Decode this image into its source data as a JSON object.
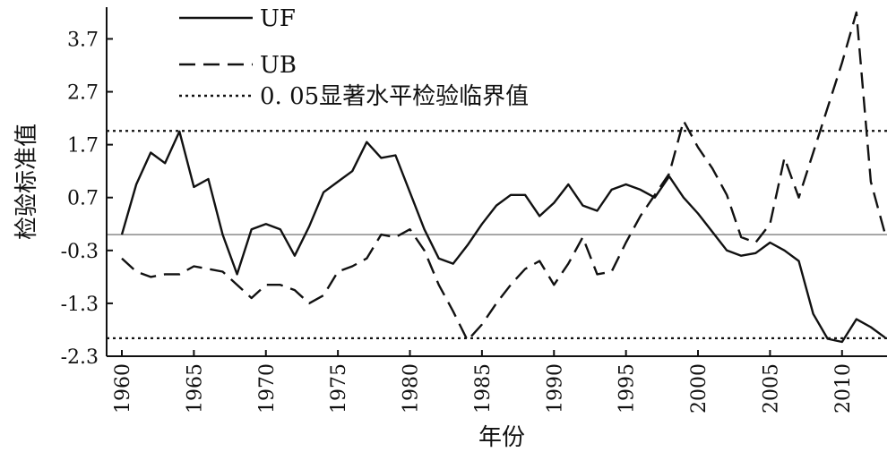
{
  "chart_data": {
    "type": "line",
    "xlabel": "年份",
    "ylabel": "检验标准值",
    "xlim": [
      1960,
      2013
    ],
    "ylim": [
      -2.3,
      4.3
    ],
    "xticks": [
      1960,
      1965,
      1970,
      1975,
      1980,
      1985,
      1990,
      1995,
      2000,
      2005,
      2010
    ],
    "yticks": [
      -2.3,
      -1.3,
      -0.3,
      0.7,
      1.7,
      2.7,
      3.7
    ],
    "ytick_labels": [
      "-2.3",
      "-1.3",
      "-0.3",
      "0.7",
      "1.7",
      "2.7",
      "3.7"
    ],
    "zero_line": 0,
    "critical_lines": [
      1.96,
      -1.96
    ],
    "legend_position": "top-left",
    "series": [
      {
        "name": "UF",
        "style": "solid",
        "x": [
          1960,
          1961,
          1962,
          1963,
          1964,
          1965,
          1966,
          1967,
          1968,
          1969,
          1970,
          1971,
          1972,
          1973,
          1974,
          1975,
          1976,
          1977,
          1978,
          1979,
          1980,
          1981,
          1982,
          1983,
          1984,
          1985,
          1986,
          1987,
          1988,
          1989,
          1990,
          1991,
          1992,
          1993,
          1994,
          1995,
          1996,
          1997,
          1998,
          1999,
          2000,
          2001,
          2002,
          2003,
          2004,
          2005,
          2006,
          2007,
          2008,
          2009,
          2010,
          2011,
          2012,
          2013
        ],
        "y": [
          0,
          0.95,
          1.55,
          1.35,
          1.95,
          0.9,
          1.05,
          0,
          -0.75,
          0.1,
          0.2,
          0.1,
          -0.4,
          0.15,
          0.8,
          1.0,
          1.2,
          1.75,
          1.45,
          1.5,
          0.8,
          0.1,
          -0.45,
          -0.55,
          -0.2,
          0.2,
          0.55,
          0.75,
          0.75,
          0.35,
          0.6,
          0.95,
          0.55,
          0.45,
          0.85,
          0.95,
          0.85,
          0.7,
          1.1,
          0.7,
          0.4,
          0.05,
          -0.3,
          -0.4,
          -0.35,
          -0.15,
          -0.3,
          -0.5,
          -1.5,
          -1.97,
          -2.03,
          -1.6,
          -1.75,
          -1.95
        ]
      },
      {
        "name": "UB",
        "style": "dashed",
        "x": [
          1960,
          1961,
          1962,
          1963,
          1964,
          1965,
          1966,
          1967,
          1968,
          1969,
          1970,
          1971,
          1972,
          1973,
          1974,
          1975,
          1976,
          1977,
          1978,
          1979,
          1980,
          1981,
          1982,
          1983,
          1984,
          1985,
          1986,
          1987,
          1988,
          1989,
          1990,
          1991,
          1992,
          1993,
          1994,
          1995,
          1996,
          1997,
          1998,
          1999,
          2000,
          2001,
          2002,
          2003,
          2004,
          2005,
          2006,
          2007,
          2008,
          2009,
          2010,
          2011,
          2012,
          2013
        ],
        "y": [
          -0.45,
          -0.7,
          -0.8,
          -0.75,
          -0.75,
          -0.6,
          -0.65,
          -0.7,
          -0.95,
          -1.2,
          -0.95,
          -0.95,
          -1.05,
          -1.3,
          -1.15,
          -0.7,
          -0.6,
          -0.45,
          0,
          -0.05,
          0.1,
          -0.3,
          -0.95,
          -1.45,
          -2.0,
          -1.7,
          -1.3,
          -0.95,
          -0.65,
          -0.5,
          -0.95,
          -0.55,
          -0.05,
          -0.75,
          -0.7,
          -0.15,
          0.35,
          0.75,
          1.15,
          2.15,
          1.65,
          1.25,
          0.75,
          -0.05,
          -0.15,
          0.2,
          1.45,
          0.7,
          1.55,
          2.4,
          3.25,
          4.2,
          1.0,
          0
        ]
      },
      {
        "name": "0. 05显著水平检验临界值",
        "style": "dotted"
      }
    ]
  }
}
